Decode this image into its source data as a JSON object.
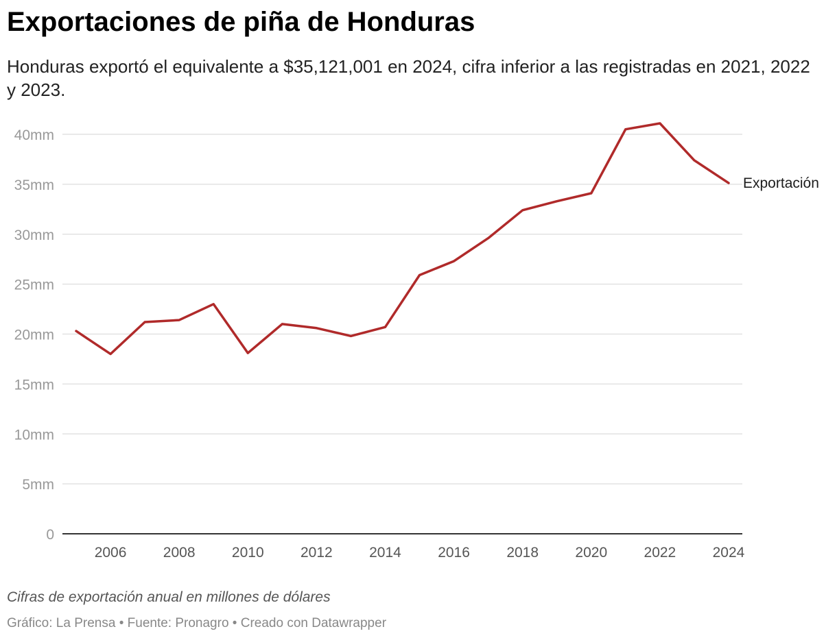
{
  "header": {
    "title": "Exportaciones de piña de Honduras",
    "subtitle": "Honduras exportó el equivalente a $35,121,001 en 2024, cifra inferior a las registradas en 2021, 2022 y 2023."
  },
  "chart_data": {
    "type": "line",
    "x": [
      2005,
      2006,
      2007,
      2008,
      2009,
      2010,
      2011,
      2012,
      2013,
      2014,
      2015,
      2016,
      2017,
      2018,
      2019,
      2020,
      2021,
      2022,
      2023,
      2024
    ],
    "series": [
      {
        "name": "Exportación",
        "color": "#b02a2a",
        "values": [
          20.3,
          18.0,
          21.2,
          21.4,
          23.0,
          18.1,
          21.0,
          20.6,
          19.8,
          20.7,
          25.9,
          27.3,
          29.6,
          32.4,
          33.3,
          34.1,
          40.5,
          41.1,
          37.4,
          35.121
        ]
      }
    ],
    "yticks": [
      0,
      5,
      10,
      15,
      20,
      25,
      30,
      35,
      40
    ],
    "ytick_labels": [
      "0",
      "5mm",
      "10mm",
      "15mm",
      "20mm",
      "25mm",
      "30mm",
      "35mm",
      "40mm"
    ],
    "xticks": [
      2006,
      2008,
      2010,
      2012,
      2014,
      2016,
      2018,
      2020,
      2022,
      2024
    ],
    "xtick_labels": [
      "2006",
      "2008",
      "2010",
      "2012",
      "2014",
      "2016",
      "2018",
      "2020",
      "2022",
      "2024"
    ],
    "xlim": [
      2004.6,
      2024.4
    ],
    "ylim": [
      0,
      40
    ],
    "grid": true,
    "legend": "inline label at line end",
    "colors": {
      "line": "#b02a2a",
      "grid": "#e2e2e2",
      "baseline": "#333333",
      "tick_text": "#999999"
    }
  },
  "footer": {
    "notes": "Cifras de exportación anual en millones de dólares",
    "credit_graphic": "Gráfico: La Prensa",
    "credit_source": "Fuente: Pronagro",
    "credit_tool": "Creado con Datawrapper",
    "separator": " • "
  }
}
